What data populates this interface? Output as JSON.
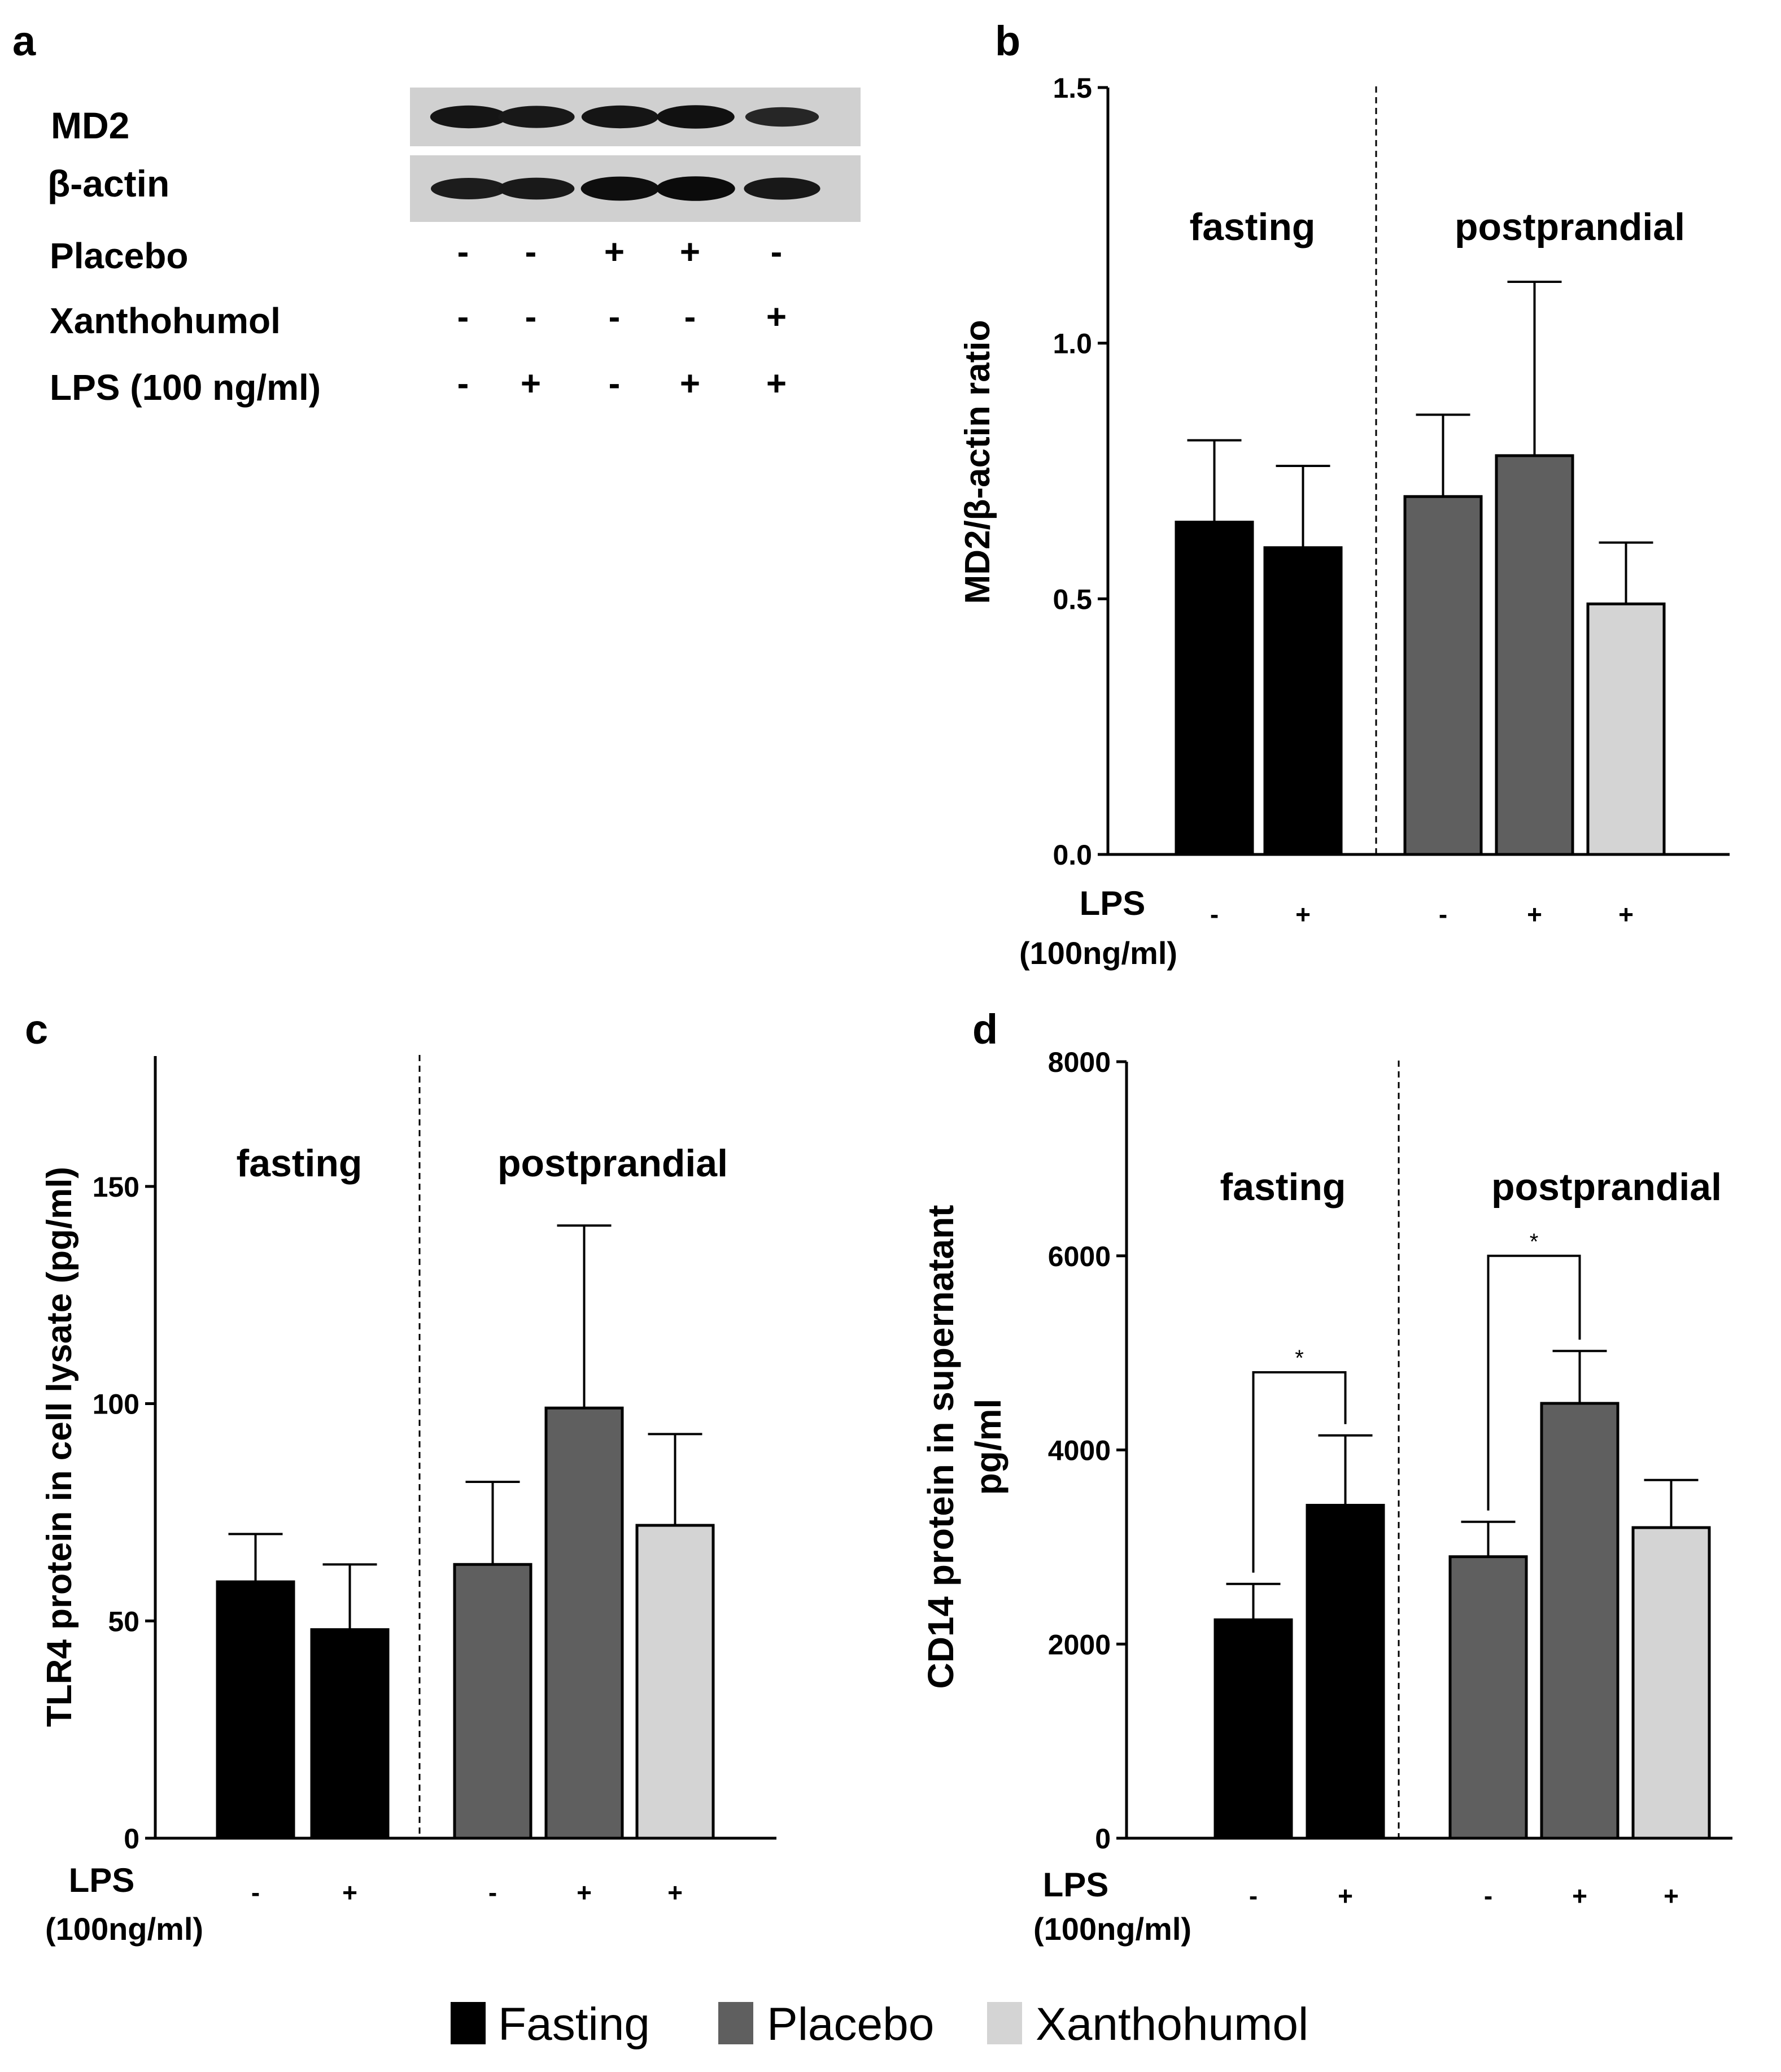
{
  "panels": {
    "a": {
      "letter": "a",
      "bands": [
        "MD2",
        "β-actin"
      ],
      "rows": [
        {
          "label": "Placebo",
          "signs": [
            "-",
            "-",
            "+",
            "+",
            "-"
          ]
        },
        {
          "label": "Xanthohumol",
          "signs": [
            "-",
            "-",
            "-",
            "-",
            "+"
          ]
        },
        {
          "label": "LPS (100 ng/ml)",
          "signs": [
            "-",
            "+",
            "-",
            "+",
            "+"
          ]
        }
      ],
      "md2_intensity": [
        0.85,
        0.8,
        0.85,
        0.9,
        0.6
      ],
      "actin_intensity": [
        0.75,
        0.78,
        0.95,
        0.98,
        0.8
      ]
    },
    "b": {
      "letter": "b"
    },
    "c": {
      "letter": "c"
    },
    "d": {
      "letter": "d"
    }
  },
  "legend": [
    {
      "label": "Fasting",
      "color": "#000000"
    },
    {
      "label": "Placebo",
      "color": "#5f5f5f"
    },
    {
      "label": "Xanthohumol",
      "color": "#d4d4d4"
    }
  ],
  "chart_data": [
    {
      "id": "b",
      "type": "bar",
      "ylabel": "MD2/β-actin ratio",
      "ylim": [
        0,
        1.5
      ],
      "yticks": [
        "0.0",
        "0.5",
        "1.0",
        "1.5"
      ],
      "ytick_values": [
        0,
        0.5,
        1.0,
        1.5
      ],
      "group_labels": [
        "fasting",
        "postprandial"
      ],
      "xlabel_line1": "LPS",
      "xlabel_line2": "(100ng/ml)",
      "bars": [
        {
          "lps": "-",
          "group": "Fasting",
          "value": 0.65,
          "error": 0.16
        },
        {
          "lps": "+",
          "group": "Fasting",
          "value": 0.6,
          "error": 0.16
        },
        {
          "lps": "-",
          "group": "Placebo",
          "value": 0.7,
          "error": 0.16
        },
        {
          "lps": "+",
          "group": "Placebo",
          "value": 0.78,
          "error": 0.34
        },
        {
          "lps": "+",
          "group": "Xanthohumol",
          "value": 0.49,
          "error": 0.12
        }
      ]
    },
    {
      "id": "c",
      "type": "bar",
      "ylabel": "TLR4 protein in cell lysate (pg/ml)",
      "ylim": [
        0,
        180
      ],
      "yticks": [
        "0",
        "50",
        "100",
        "150"
      ],
      "ytick_values": [
        0,
        50,
        100,
        150
      ],
      "group_labels": [
        "fasting",
        "postprandial"
      ],
      "xlabel_line1": "LPS",
      "xlabel_line2": "(100ng/ml)",
      "bars": [
        {
          "lps": "-",
          "group": "Fasting",
          "value": 59,
          "error": 11
        },
        {
          "lps": "+",
          "group": "Fasting",
          "value": 48,
          "error": 15
        },
        {
          "lps": "-",
          "group": "Placebo",
          "value": 63,
          "error": 19
        },
        {
          "lps": "+",
          "group": "Placebo",
          "value": 99,
          "error": 42
        },
        {
          "lps": "+",
          "group": "Xanthohumol",
          "value": 72,
          "error": 21
        }
      ]
    },
    {
      "id": "d",
      "type": "bar",
      "ylabel_line1": "CD14 protein in supernatant",
      "ylabel_line2": "pg/ml",
      "ylim": [
        0,
        8000
      ],
      "yticks": [
        "0",
        "2000",
        "4000",
        "6000",
        "8000"
      ],
      "ytick_values": [
        0,
        2000,
        4000,
        6000,
        8000
      ],
      "group_labels": [
        "fasting",
        "postprandial"
      ],
      "xlabel_line1": "LPS",
      "xlabel_line2": "(100ng/ml)",
      "bars": [
        {
          "lps": "-",
          "group": "Fasting",
          "value": 2250,
          "error": 370
        },
        {
          "lps": "+",
          "group": "Fasting",
          "value": 3430,
          "error": 720
        },
        {
          "lps": "-",
          "group": "Placebo",
          "value": 2900,
          "error": 360
        },
        {
          "lps": "+",
          "group": "Placebo",
          "value": 4480,
          "error": 540
        },
        {
          "lps": "+",
          "group": "Xanthohumol",
          "value": 3200,
          "error": 490
        }
      ],
      "significance": [
        {
          "from": 0,
          "to": 1,
          "label": "*",
          "bracket_value": 4800
        },
        {
          "from": 2,
          "to": 3,
          "label": "*",
          "bracket_value": 6000
        }
      ]
    }
  ]
}
